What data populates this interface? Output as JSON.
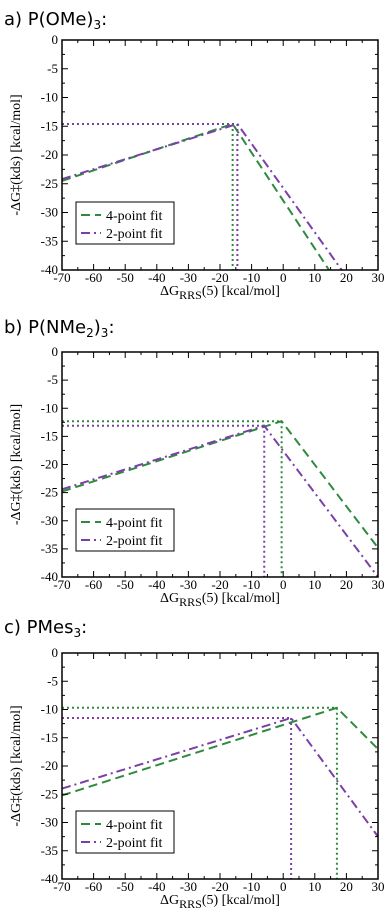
{
  "colors": {
    "green": "#2e8b3e",
    "purple": "#7b3fa8",
    "axis": "#000000"
  },
  "chart_data": [
    {
      "type": "line",
      "title_main": "a) P(OMe)",
      "title_sub": "3",
      "title_end": ":",
      "xlabel_main": "ΔG",
      "xlabel_sub": "RRS",
      "xlabel_end": "(5) [kcal/mol]",
      "ylabel": "-ΔG‡(kds) [kcal/mol]",
      "xlim": [
        -70,
        30
      ],
      "ylim": [
        -40,
        0
      ],
      "xticks": [
        "-70",
        "-60",
        "-50",
        "-40",
        "-30",
        "-20",
        "-10",
        "0",
        "10",
        "20",
        "30"
      ],
      "yticks": [
        "0",
        "-5",
        "-10",
        "-15",
        "-20",
        "-25",
        "-30",
        "-35",
        "-40"
      ],
      "legend_position": "lower-left",
      "series": [
        {
          "name": "4-point fit",
          "style": "dashed",
          "color": "#2e8b3e",
          "x": [
            -70,
            -16,
            14.5
          ],
          "y": [
            -24.5,
            -14.6,
            -40
          ],
          "marker_x": -16,
          "marker_y": -14.6
        },
        {
          "name": "2-point fit",
          "style": "dashdot",
          "color": "#7b3fa8",
          "x": [
            -70,
            -14.5,
            18.5
          ],
          "y": [
            -24.2,
            -14.6,
            -40
          ],
          "marker_x": -14.5,
          "marker_y": -14.6
        }
      ]
    },
    {
      "type": "line",
      "title_main": "b) P(NMe",
      "title_sub": "2",
      "title_end": ")",
      "title_sub2": "3",
      "title_end2": ":",
      "xlabel_main": "ΔG",
      "xlabel_sub": "RRS",
      "xlabel_end": "(5) [kcal/mol]",
      "ylabel": "-ΔG‡(kds) [kcal/mol]",
      "xlim": [
        -70,
        30
      ],
      "ylim": [
        -40,
        0
      ],
      "xticks": [
        "-70",
        "-60",
        "-50",
        "-40",
        "-30",
        "-20",
        "-10",
        "0",
        "10",
        "20",
        "30"
      ],
      "yticks": [
        "0",
        "-5",
        "-10",
        "-15",
        "-20",
        "-25",
        "-30",
        "-35",
        "-40"
      ],
      "legend_position": "lower-left",
      "series": [
        {
          "name": "4-point fit",
          "style": "dashed",
          "color": "#2e8b3e",
          "x": [
            -70,
            -0.5,
            30
          ],
          "y": [
            -24.8,
            -12.3,
            -34.8
          ],
          "marker_x": -0.5,
          "marker_y": -12.3
        },
        {
          "name": "2-point fit",
          "style": "dashdot",
          "color": "#7b3fa8",
          "x": [
            -70,
            -6,
            30
          ],
          "y": [
            -24.4,
            -13.1,
            -40
          ],
          "marker_x": -6,
          "marker_y": -13.1
        }
      ]
    },
    {
      "type": "line",
      "title_main": "c) PMes",
      "title_sub": "3",
      "title_end": ":",
      "xlabel_main": "ΔG",
      "xlabel_sub": "RRS",
      "xlabel_end": "(5) [kcal/mol]",
      "ylabel": "-ΔG‡(kds) [kcal/mol]",
      "xlim": [
        -70,
        30
      ],
      "ylim": [
        -40,
        0
      ],
      "xticks": [
        "-70",
        "-60",
        "-50",
        "-40",
        "-30",
        "-20",
        "-10",
        "0",
        "10",
        "20",
        "30"
      ],
      "yticks": [
        "0",
        "-5",
        "-10",
        "-15",
        "-20",
        "-25",
        "-30",
        "-35",
        "-40"
      ],
      "legend_position": "lower-left",
      "series": [
        {
          "name": "4-point fit",
          "style": "dashed",
          "color": "#2e8b3e",
          "x": [
            -70,
            17,
            30
          ],
          "y": [
            -25.2,
            -9.7,
            -17
          ],
          "marker_x": 17,
          "marker_y": -9.7
        },
        {
          "name": "2-point fit",
          "style": "dashdot",
          "color": "#7b3fa8",
          "x": [
            -70,
            2.5,
            30
          ],
          "y": [
            -24,
            -11.5,
            -32.5
          ],
          "marker_x": 2.5,
          "marker_y": -11.5
        }
      ]
    }
  ]
}
